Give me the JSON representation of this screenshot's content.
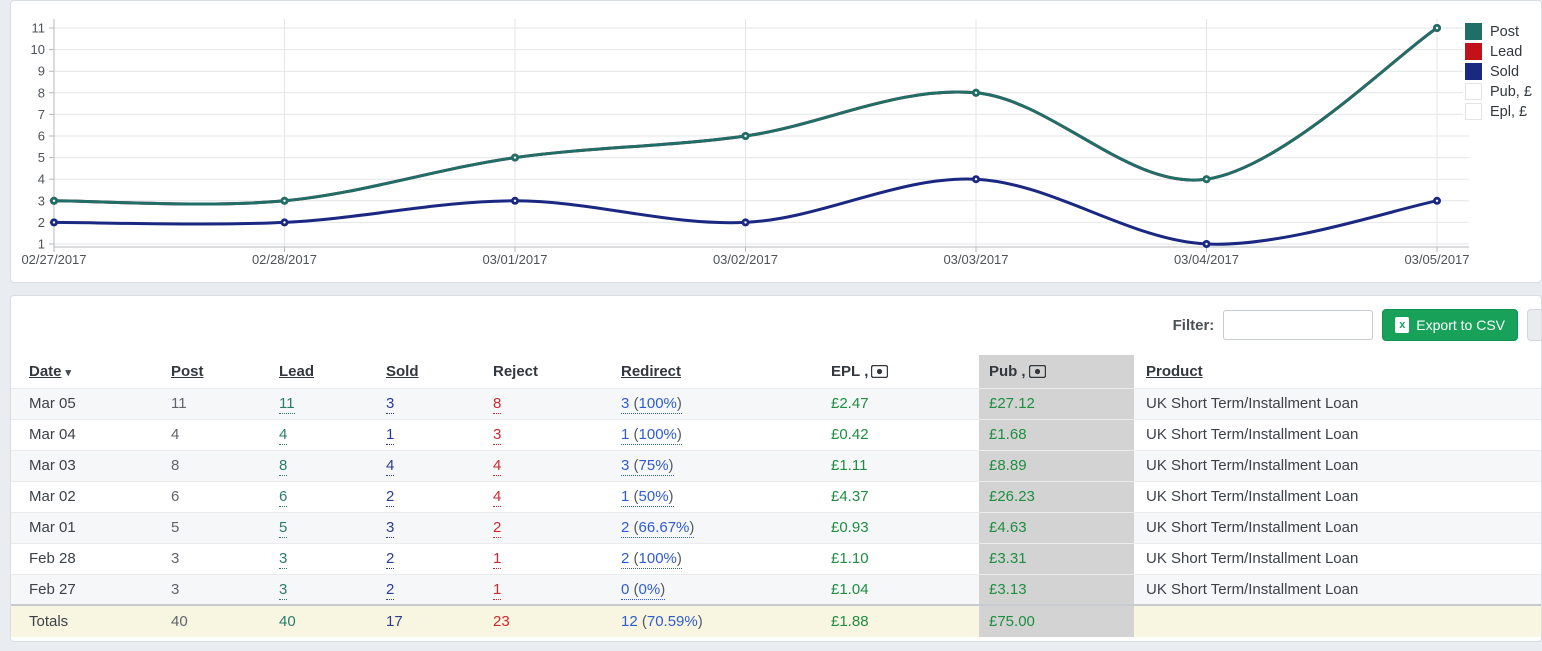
{
  "chart_data": {
    "type": "line",
    "style": "spline",
    "x": [
      "02/27/2017",
      "02/28/2017",
      "03/01/2017",
      "03/02/2017",
      "03/03/2017",
      "03/04/2017",
      "03/05/2017"
    ],
    "series": [
      {
        "name": "Post",
        "color": "#206e68",
        "values": [
          3,
          3,
          5,
          6,
          8,
          4,
          11
        ],
        "visible": true
      },
      {
        "name": "Lead",
        "color": "#c1121a",
        "values": [
          3,
          3,
          5,
          6,
          8,
          4,
          11
        ],
        "visible": true,
        "note": "overlaps Post line exactly"
      },
      {
        "name": "Sold",
        "color": "#1a2881",
        "values": [
          2,
          2,
          3,
          2,
          4,
          1,
          3
        ],
        "visible": true
      },
      {
        "name": "Pub, £",
        "color": "#ffffff",
        "values": null,
        "visible": false
      },
      {
        "name": "Epl, £",
        "color": "#ffffff",
        "values": null,
        "visible": false
      }
    ],
    "ylim": [
      1,
      11
    ],
    "y_ticks": [
      1,
      2,
      3,
      4,
      5,
      6,
      7,
      8,
      9,
      10,
      11
    ],
    "grid": true,
    "legend_position": "top-right"
  },
  "toolbar": {
    "filter_label": "Filter:",
    "filter_value": "",
    "export_label": "Export to CSV"
  },
  "table": {
    "columns": [
      {
        "key": "date",
        "label": "Date",
        "sortable": true,
        "sorted": "desc"
      },
      {
        "key": "post",
        "label": "Post",
        "sortable": true
      },
      {
        "key": "lead",
        "label": "Lead",
        "sortable": true
      },
      {
        "key": "sold",
        "label": "Sold",
        "sortable": true
      },
      {
        "key": "reject",
        "label": "Reject",
        "sortable": false
      },
      {
        "key": "redirect",
        "label": "Redirect",
        "sortable": true
      },
      {
        "key": "epl",
        "label": "EPL",
        "sortable": false,
        "money_icon": true
      },
      {
        "key": "pub",
        "label": "Pub",
        "sortable": false,
        "money_icon": true,
        "highlight": true
      },
      {
        "key": "product",
        "label": "Product",
        "sortable": true
      }
    ],
    "rows": [
      {
        "date": "Mar 05",
        "post": "11",
        "lead": "11",
        "sold": "3",
        "reject": "8",
        "redirect": {
          "count": "3",
          "percent": "100%"
        },
        "epl": "£2.47",
        "pub": "£27.12",
        "product": "UK Short Term/Installment Loan"
      },
      {
        "date": "Mar 04",
        "post": "4",
        "lead": "4",
        "sold": "1",
        "reject": "3",
        "redirect": {
          "count": "1",
          "percent": "100%"
        },
        "epl": "£0.42",
        "pub": "£1.68",
        "product": "UK Short Term/Installment Loan"
      },
      {
        "date": "Mar 03",
        "post": "8",
        "lead": "8",
        "sold": "4",
        "reject": "4",
        "redirect": {
          "count": "3",
          "percent": "75%"
        },
        "epl": "£1.11",
        "pub": "£8.89",
        "product": "UK Short Term/Installment Loan"
      },
      {
        "date": "Mar 02",
        "post": "6",
        "lead": "6",
        "sold": "2",
        "reject": "4",
        "redirect": {
          "count": "1",
          "percent": "50%"
        },
        "epl": "£4.37",
        "pub": "£26.23",
        "product": "UK Short Term/Installment Loan"
      },
      {
        "date": "Mar 01",
        "post": "5",
        "lead": "5",
        "sold": "3",
        "reject": "2",
        "redirect": {
          "count": "2",
          "percent": "66.67%"
        },
        "epl": "£0.93",
        "pub": "£4.63",
        "product": "UK Short Term/Installment Loan"
      },
      {
        "date": "Feb 28",
        "post": "3",
        "lead": "3",
        "sold": "2",
        "reject": "1",
        "redirect": {
          "count": "2",
          "percent": "100%"
        },
        "epl": "£1.10",
        "pub": "£3.31",
        "product": "UK Short Term/Installment Loan"
      },
      {
        "date": "Feb 27",
        "post": "3",
        "lead": "3",
        "sold": "2",
        "reject": "1",
        "redirect": {
          "count": "0",
          "percent": "0%"
        },
        "epl": "£1.04",
        "pub": "£3.13",
        "product": "UK Short Term/Installment Loan"
      }
    ],
    "totals": {
      "date": "Totals",
      "post": "40",
      "lead": "40",
      "sold": "17",
      "reject": "23",
      "redirect": {
        "count": "12",
        "percent": "70.59%"
      },
      "epl": "£1.88",
      "pub": "£75.00",
      "product": ""
    }
  },
  "colors": {
    "post": "#206e68",
    "lead": "#c1121a",
    "sold": "#1a2881",
    "money_green": "#1f8e41",
    "redirect_blue": "#2f5cd0",
    "reject_red": "#c92a30",
    "pub_column_bg": "#d3d3d3",
    "totals_bg": "#f8f5e1",
    "export_button": "#17a159"
  }
}
